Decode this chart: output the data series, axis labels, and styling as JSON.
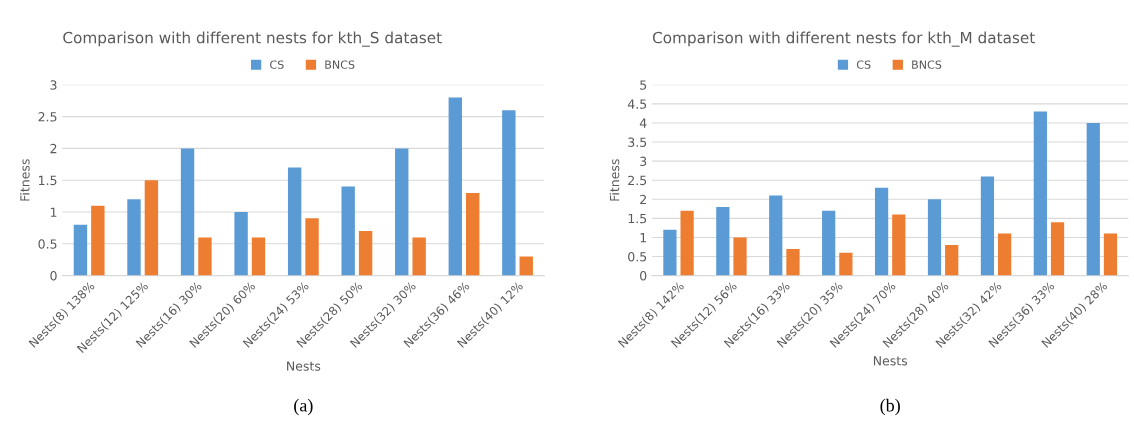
{
  "chart_data": [
    {
      "type": "bar",
      "title": "Comparison with different nests for kth_S dataset",
      "xlabel": "Nests",
      "ylabel": "Fitness",
      "categories": [
        "Nests(8) 138%",
        "Nests(12) 125%",
        "Nests(16) 30%",
        "Nests(20) 60%",
        "Nests(24) 53%",
        "Nests(28) 50%",
        "Nests(32) 30%",
        "Nests(36) 46%",
        "Nests(40) 12%"
      ],
      "series": [
        {
          "name": "CS",
          "color": "#5b9bd5",
          "values": [
            0.8,
            1.2,
            2.0,
            1.0,
            1.7,
            1.4,
            2.0,
            2.8,
            2.6
          ]
        },
        {
          "name": "BNCS",
          "color": "#ed7d31",
          "values": [
            1.1,
            1.5,
            0.6,
            0.6,
            0.9,
            0.7,
            0.6,
            1.3,
            0.3
          ]
        }
      ],
      "ylim": [
        0,
        3
      ],
      "yticks": [
        0,
        0.5,
        1,
        1.5,
        2,
        2.5,
        3
      ],
      "grid": "y",
      "legend": "top",
      "annotations": [
        "(a)"
      ]
    },
    {
      "type": "bar",
      "title": "Comparison with different nests for kth_M dataset",
      "xlabel": "Nests",
      "ylabel": "Fitness",
      "categories": [
        "Nests(8) 142%",
        "Nests(12) 56%",
        "Nests(16) 33%",
        "Nests(20) 35%",
        "Nests(24) 70%",
        "Nests(28) 40%",
        "Nests(32) 42%",
        "Nests(36) 33%",
        "Nests(40) 28%"
      ],
      "series": [
        {
          "name": "CS",
          "color": "#5b9bd5",
          "values": [
            1.2,
            1.8,
            2.1,
            1.7,
            2.3,
            2.0,
            2.6,
            4.3,
            4.0
          ]
        },
        {
          "name": "BNCS",
          "color": "#ed7d31",
          "values": [
            1.7,
            1.0,
            0.7,
            0.6,
            1.6,
            0.8,
            1.1,
            1.4,
            1.1
          ]
        }
      ],
      "ylim": [
        0,
        5
      ],
      "yticks": [
        0,
        0.5,
        1,
        1.5,
        2,
        2.5,
        3,
        3.5,
        4,
        4.5,
        5
      ],
      "grid": "y",
      "legend": "top",
      "annotations": [
        "(b)"
      ]
    }
  ]
}
